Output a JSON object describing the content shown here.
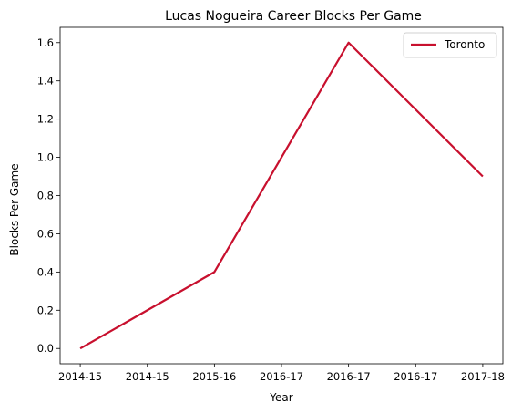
{
  "chart_data": {
    "type": "line",
    "title": "Lucas Nogueira Career Blocks Per Game",
    "xlabel": "Year",
    "ylabel": "Blocks Per Game",
    "x_tick_labels": [
      "2014-15",
      "2014-15",
      "2015-16",
      "2016-17",
      "2016-17",
      "2016-17",
      "2017-18"
    ],
    "x_tick_positions": [
      0,
      0.5,
      1,
      1.5,
      2,
      2.5,
      3
    ],
    "xlim": [
      -0.15,
      3.15
    ],
    "ylim": [
      -0.08,
      1.68
    ],
    "y_ticks": [
      "0.0",
      "0.2",
      "0.4",
      "0.6",
      "0.8",
      "1.0",
      "1.2",
      "1.4",
      "1.6"
    ],
    "grid": false,
    "legend_position": "top-right",
    "series": [
      {
        "name": "Toronto",
        "color": "#c8102e",
        "x": [
          0,
          1,
          2,
          3
        ],
        "y": [
          0.0,
          0.4,
          1.6,
          0.9
        ]
      }
    ]
  }
}
